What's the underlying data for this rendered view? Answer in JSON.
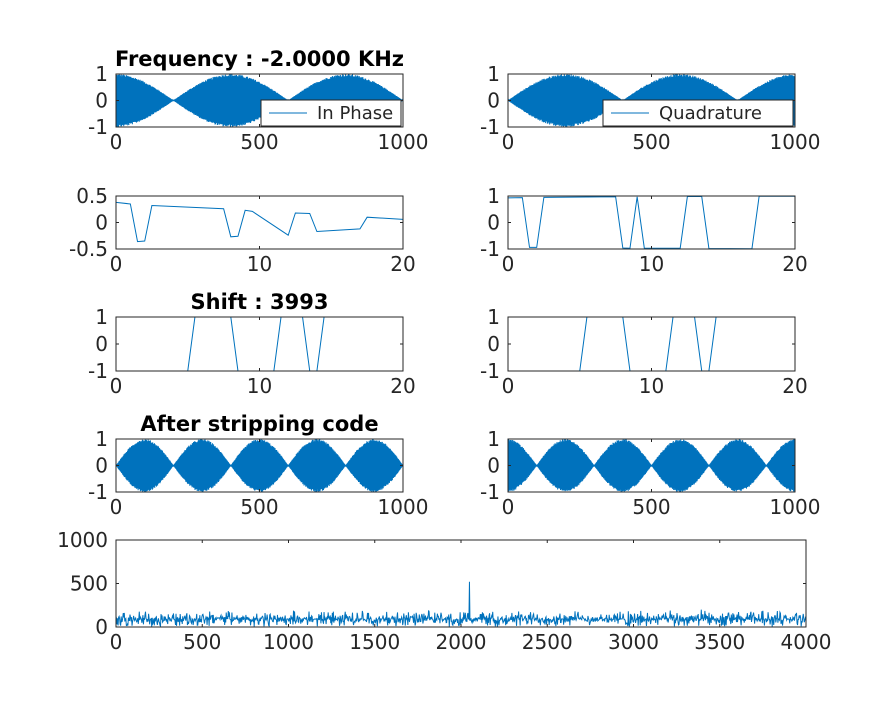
{
  "figure": {
    "background": "#ffffff",
    "line_color": "#0072bd",
    "axis_color": "#262626"
  },
  "chart_data": [
    {
      "id": "in-phase-freq",
      "type": "line",
      "title": "Frequency : -2.0000 KHz",
      "legend": "In Phase",
      "legend_placement": "bottom-right",
      "xlim": [
        0,
        1000
      ],
      "ylim": [
        -1,
        1
      ],
      "xticks": [
        0,
        500,
        1000
      ],
      "yticks": [
        -1,
        0,
        1
      ],
      "xtick_labels": [
        "0",
        "500",
        "1000"
      ],
      "ytick_labels": [
        "-1",
        "0",
        "1"
      ],
      "signal": {
        "kind": "dense-oscillation",
        "envelope": "abs-cos",
        "envelope_period": 400,
        "envelope_phase": 0,
        "n": 1000
      }
    },
    {
      "id": "quadrature-freq",
      "type": "line",
      "title": "",
      "legend": "Quadrature",
      "legend_placement": "bottom-right",
      "xlim": [
        0,
        1000
      ],
      "ylim": [
        -1,
        1
      ],
      "xticks": [
        0,
        500,
        1000
      ],
      "yticks": [
        -1,
        0,
        1
      ],
      "xtick_labels": [
        "0",
        "500",
        "1000"
      ],
      "ytick_labels": [
        "-1",
        "0",
        "1"
      ],
      "signal": {
        "kind": "dense-oscillation",
        "envelope": "abs-sin",
        "envelope_period": 400,
        "envelope_phase": 0,
        "n": 1000
      }
    },
    {
      "id": "in-phase-zoom",
      "type": "line",
      "title": "",
      "xlim": [
        0,
        20
      ],
      "ylim": [
        -0.5,
        0.5
      ],
      "xticks": [
        0,
        10,
        20
      ],
      "yticks": [
        -0.5,
        0,
        0.5
      ],
      "xtick_labels": [
        "0",
        "10",
        "20"
      ],
      "ytick_labels": [
        "-0.5",
        "0",
        "0.5"
      ],
      "x": [
        0,
        1,
        1.5,
        2,
        2.5,
        7.5,
        8,
        8.5,
        9,
        9.5,
        12,
        12.5,
        13.5,
        14,
        17,
        17.5,
        20
      ],
      "y": [
        0.38,
        0.35,
        -0.36,
        -0.35,
        0.32,
        0.26,
        -0.27,
        -0.26,
        0.23,
        0.21,
        -0.24,
        0.18,
        0.17,
        -0.17,
        -0.12,
        0.1,
        0.06
      ]
    },
    {
      "id": "quadrature-zoom",
      "type": "line",
      "title": "",
      "xlim": [
        0,
        20
      ],
      "ylim": [
        -1,
        1
      ],
      "xticks": [
        0,
        10,
        20
      ],
      "yticks": [
        -1,
        0,
        1
      ],
      "xtick_labels": [
        "0",
        "10",
        "20"
      ],
      "ytick_labels": [
        "-1",
        "0",
        "1"
      ],
      "x": [
        0,
        1,
        1.5,
        2,
        2.5,
        7.5,
        8,
        8.5,
        9,
        9.5,
        12,
        12.5,
        13.5,
        14,
        17,
        17.5,
        20
      ],
      "y": [
        0.93,
        0.94,
        -0.94,
        -0.94,
        0.95,
        0.97,
        -0.96,
        -0.97,
        0.97,
        -0.97,
        -0.97,
        0.98,
        0.98,
        -0.98,
        -0.99,
        0.99,
        0.99
      ]
    },
    {
      "id": "shift-code-i",
      "type": "line",
      "title": "Shift : 3993",
      "xlim": [
        0,
        20
      ],
      "ylim": [
        -1,
        1
      ],
      "xticks": [
        0,
        10,
        20
      ],
      "yticks": [
        -1,
        0,
        1
      ],
      "xtick_labels": [
        "0",
        "10",
        "20"
      ],
      "ytick_labels": [
        "-1",
        "0",
        "1"
      ],
      "x": [
        0,
        5,
        5.5,
        8,
        8.5,
        11,
        11.5,
        13,
        13.5,
        14,
        14.5,
        20
      ],
      "y": [
        -1,
        -1,
        1,
        1,
        -1,
        -1,
        1,
        1,
        -1,
        -1,
        1,
        1
      ]
    },
    {
      "id": "shift-code-q",
      "type": "line",
      "title": "",
      "xlim": [
        0,
        20
      ],
      "ylim": [
        -1,
        1
      ],
      "xticks": [
        0,
        10,
        20
      ],
      "yticks": [
        -1,
        0,
        1
      ],
      "xtick_labels": [
        "0",
        "10",
        "20"
      ],
      "ytick_labels": [
        "-1",
        "0",
        "1"
      ],
      "x": [
        0,
        5,
        5.5,
        8,
        8.5,
        11,
        11.5,
        13,
        13.5,
        14,
        14.5,
        20
      ],
      "y": [
        -1,
        -1,
        1,
        1,
        -1,
        -1,
        1,
        1,
        -1,
        -1,
        1,
        1
      ]
    },
    {
      "id": "stripped-i",
      "type": "line",
      "title": "After stripping code",
      "xlim": [
        0,
        1000
      ],
      "ylim": [
        -1,
        1
      ],
      "xticks": [
        0,
        500,
        1000
      ],
      "yticks": [
        -1,
        0,
        1
      ],
      "xtick_labels": [
        "0",
        "500",
        "1000"
      ],
      "ytick_labels": [
        "-1",
        "0",
        "1"
      ],
      "signal": {
        "kind": "dense-oscillation",
        "envelope": "abs-sin",
        "envelope_period": 200,
        "envelope_phase": 0,
        "n": 1000
      }
    },
    {
      "id": "stripped-q",
      "type": "line",
      "title": "",
      "xlim": [
        0,
        1000
      ],
      "ylim": [
        -1,
        1
      ],
      "xticks": [
        0,
        500,
        1000
      ],
      "yticks": [
        -1,
        0,
        1
      ],
      "xtick_labels": [
        "0",
        "500",
        "1000"
      ],
      "ytick_labels": [
        "-1",
        "0",
        "1"
      ],
      "signal": {
        "kind": "dense-oscillation",
        "envelope": "abs-cos",
        "envelope_period": 200,
        "envelope_phase": 0,
        "n": 1000
      }
    },
    {
      "id": "correlation",
      "type": "line",
      "title": "",
      "xlim": [
        0,
        4000
      ],
      "ylim": [
        0,
        1000
      ],
      "xticks": [
        0,
        500,
        1000,
        1500,
        2000,
        2500,
        3000,
        3500,
        4000
      ],
      "yticks": [
        0,
        500,
        1000
      ],
      "xtick_labels": [
        "0",
        "500",
        "1000",
        "1500",
        "2000",
        "2500",
        "3000",
        "3500",
        "4000"
      ],
      "ytick_labels": [
        "0",
        "500",
        "1000"
      ],
      "signal": {
        "kind": "noise",
        "n": 4000,
        "baseline": 90,
        "spread": 160,
        "peak_x": 2050,
        "peak_y": 520
      }
    }
  ]
}
